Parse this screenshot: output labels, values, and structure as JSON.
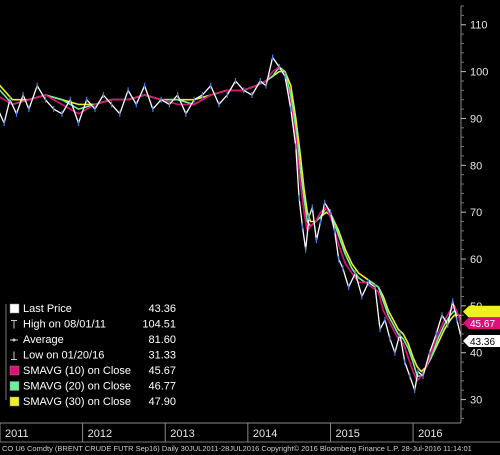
{
  "chart_data": {
    "type": "line",
    "y_ticks": [
      30,
      40,
      50,
      60,
      70,
      80,
      90,
      100,
      110
    ],
    "ylim": [
      25,
      114
    ],
    "xlim": [
      2011.0,
      2016.58
    ],
    "x_ticks": [
      {
        "label": "2011",
        "x": 2011.0
      },
      {
        "label": "2012",
        "x": 2012.0
      },
      {
        "label": "2013",
        "x": 2013.0
      },
      {
        "label": "2014",
        "x": 2014.0
      },
      {
        "label": "2015",
        "x": 2015.0
      },
      {
        "label": "2016",
        "x": 2016.0
      }
    ],
    "series": [
      {
        "name": "Last Price",
        "color": "#ffffff",
        "x": [
          2010.58,
          2010.7,
          2010.85,
          2010.95,
          2011.05,
          2011.12,
          2011.2,
          2011.28,
          2011.35,
          2011.45,
          2011.55,
          2011.65,
          2011.75,
          2011.85,
          2011.95,
          2012.05,
          2012.15,
          2012.25,
          2012.35,
          2012.45,
          2012.55,
          2012.65,
          2012.75,
          2012.85,
          2012.95,
          2013.05,
          2013.15,
          2013.25,
          2013.35,
          2013.45,
          2013.55,
          2013.65,
          2013.75,
          2013.85,
          2013.95,
          2014.05,
          2014.15,
          2014.22,
          2014.3,
          2014.38,
          2014.45,
          2014.52,
          2014.58,
          2014.62,
          2014.66,
          2014.7,
          2014.74,
          2014.78,
          2014.83,
          2014.88,
          2014.93,
          2015.0,
          2015.05,
          2015.1,
          2015.15,
          2015.22,
          2015.3,
          2015.38,
          2015.46,
          2015.54,
          2015.6,
          2015.66,
          2015.72,
          2015.78,
          2015.84,
          2015.9,
          2015.96,
          2016.02,
          2016.06,
          2016.12,
          2016.2,
          2016.28,
          2016.35,
          2016.42,
          2016.48,
          2016.53,
          2016.58
        ],
        "y": [
          105.5,
          102,
          96,
          93,
          89,
          94,
          91,
          95,
          92,
          97,
          94,
          92,
          91,
          94,
          89,
          94,
          92,
          95,
          93,
          91,
          96,
          93,
          97,
          92,
          94,
          93,
          95,
          91,
          94,
          95,
          97,
          93,
          95,
          98,
          96,
          95,
          98,
          97,
          103,
          101,
          99,
          92,
          84,
          73,
          67,
          62,
          69,
          71,
          64,
          68,
          72,
          70,
          66,
          60,
          58,
          54,
          57,
          52,
          55,
          54,
          45,
          47,
          43,
          40,
          44,
          38,
          35,
          32,
          36,
          35,
          40,
          44,
          48,
          46,
          51,
          47,
          43.36
        ]
      },
      {
        "name": "SMAVG (10) on Close",
        "color": "#e0107a",
        "x": [
          2010.58,
          2010.75,
          2010.95,
          2011.15,
          2011.35,
          2011.55,
          2011.75,
          2011.95,
          2012.15,
          2012.35,
          2012.55,
          2012.75,
          2012.95,
          2013.15,
          2013.35,
          2013.55,
          2013.75,
          2013.95,
          2014.1,
          2014.22,
          2014.3,
          2014.38,
          2014.45,
          2014.52,
          2014.58,
          2014.63,
          2014.68,
          2014.72,
          2014.76,
          2014.82,
          2014.88,
          2014.95,
          2015.02,
          2015.1,
          2015.18,
          2015.26,
          2015.34,
          2015.42,
          2015.5,
          2015.58,
          2015.64,
          2015.7,
          2015.76,
          2015.82,
          2015.88,
          2015.94,
          2016.0,
          2016.05,
          2016.1,
          2016.16,
          2016.22,
          2016.3,
          2016.38,
          2016.45,
          2016.5,
          2016.55,
          2016.58
        ],
        "y": [
          105,
          101,
          95,
          93,
          94,
          95,
          93,
          91,
          93,
          94,
          94,
          95,
          94,
          93,
          93,
          95,
          96,
          96,
          97,
          98,
          100,
          101,
          99,
          93,
          86,
          77,
          70,
          66,
          67,
          68,
          70,
          71,
          68,
          63,
          59,
          57,
          55,
          55,
          54,
          53,
          49,
          47,
          45,
          43,
          42,
          39,
          36,
          34,
          35,
          37,
          40,
          44,
          47,
          49,
          50,
          48,
          45.67
        ]
      },
      {
        "name": "SMAVG (20) on Close",
        "color": "#6ef09a",
        "x": [
          2010.58,
          2010.75,
          2010.95,
          2011.15,
          2011.35,
          2011.55,
          2011.75,
          2011.95,
          2012.15,
          2012.35,
          2012.55,
          2012.75,
          2012.95,
          2013.15,
          2013.35,
          2013.55,
          2013.75,
          2013.95,
          2014.1,
          2014.22,
          2014.3,
          2014.38,
          2014.45,
          2014.52,
          2014.58,
          2014.63,
          2014.68,
          2014.72,
          2014.76,
          2014.82,
          2014.88,
          2014.95,
          2015.02,
          2015.1,
          2015.18,
          2015.26,
          2015.34,
          2015.42,
          2015.5,
          2015.58,
          2015.64,
          2015.7,
          2015.76,
          2015.82,
          2015.88,
          2015.94,
          2016.0,
          2016.05,
          2016.1,
          2016.16,
          2016.22,
          2016.3,
          2016.38,
          2016.45,
          2016.5,
          2016.55,
          2016.58
        ],
        "y": [
          105,
          102,
          97,
          93,
          94,
          95,
          94,
          92,
          93,
          94,
          94,
          95,
          94,
          94,
          93,
          95,
          96,
          96,
          97,
          98,
          99,
          101,
          100,
          95,
          88,
          80,
          73,
          68,
          67,
          68,
          69,
          71,
          69,
          65,
          61,
          58,
          56,
          55,
          55,
          54,
          51,
          48,
          46,
          44,
          43,
          41,
          38,
          35,
          35,
          37,
          39,
          43,
          46,
          48,
          49,
          48,
          46.77
        ]
      },
      {
        "name": "SMAVG (30) on Close",
        "color": "#f0f020",
        "x": [
          2010.58,
          2010.75,
          2010.95,
          2011.15,
          2011.35,
          2011.55,
          2011.75,
          2011.95,
          2012.15,
          2012.35,
          2012.55,
          2012.75,
          2012.95,
          2013.15,
          2013.35,
          2013.55,
          2013.75,
          2013.95,
          2014.1,
          2014.22,
          2014.3,
          2014.38,
          2014.45,
          2014.52,
          2014.58,
          2014.63,
          2014.68,
          2014.72,
          2014.76,
          2014.82,
          2014.88,
          2014.95,
          2015.02,
          2015.1,
          2015.18,
          2015.26,
          2015.34,
          2015.42,
          2015.5,
          2015.58,
          2015.64,
          2015.7,
          2015.76,
          2015.82,
          2015.88,
          2015.94,
          2016.0,
          2016.05,
          2016.1,
          2016.16,
          2016.22,
          2016.3,
          2016.38,
          2016.45,
          2016.5,
          2016.55,
          2016.58
        ],
        "y": [
          105,
          102,
          98,
          94,
          94,
          95,
          94,
          93,
          93,
          94,
          94,
          95,
          94,
          94,
          94,
          95,
          96,
          96,
          97,
          98,
          99,
          100,
          100,
          97,
          90,
          83,
          75,
          70,
          68,
          68,
          69,
          70,
          69,
          66,
          62,
          59,
          57,
          56,
          55,
          54,
          52,
          49,
          47,
          45,
          44,
          42,
          39,
          37,
          36,
          37,
          39,
          42,
          45,
          47,
          48,
          48,
          47.9
        ]
      }
    ],
    "legend": {
      "placement": "bottom-left",
      "rows": [
        {
          "swatch": "#ffffff",
          "marker": "box",
          "label": "Last Price",
          "value": "43.36"
        },
        {
          "swatch": "",
          "marker": "tbar",
          "label": "High on 08/01/11",
          "value": "104.51"
        },
        {
          "swatch": "",
          "marker": "dash",
          "label": "Average",
          "value": "81.60"
        },
        {
          "swatch": "",
          "marker": "lbar",
          "label": "Low on 01/20/16",
          "value": "31.33"
        },
        {
          "swatch": "#e0107a",
          "marker": "box",
          "label": "SMAVG (10) on Close",
          "value": "45.67"
        },
        {
          "swatch": "#6ef09a",
          "marker": "box",
          "label": "SMAVG (20) on Close",
          "value": "46.77"
        },
        {
          "swatch": "#f0f020",
          "marker": "box",
          "label": "SMAVG (30) on Close",
          "value": "47.90"
        }
      ]
    },
    "price_badges": [
      {
        "value": 47.9,
        "text": "",
        "fill": "#f0f020",
        "textColor": "#000000"
      },
      {
        "value": 45.67,
        "text": "45.67",
        "fill": "#e0107a",
        "textColor": "#ffffff"
      },
      {
        "value": 43.36,
        "text": "43.36",
        "fill": "#ffffff",
        "textColor": "#000000"
      }
    ],
    "grid": false,
    "footer": "CO U6 Comdty (BRENT CRUDE FUTR  Sep16)  Daily 30JUL2011-28JUL2016 Copyright© 2016 Bloomberg Finance L.P.  28-Jul-2016 11:14:01"
  }
}
